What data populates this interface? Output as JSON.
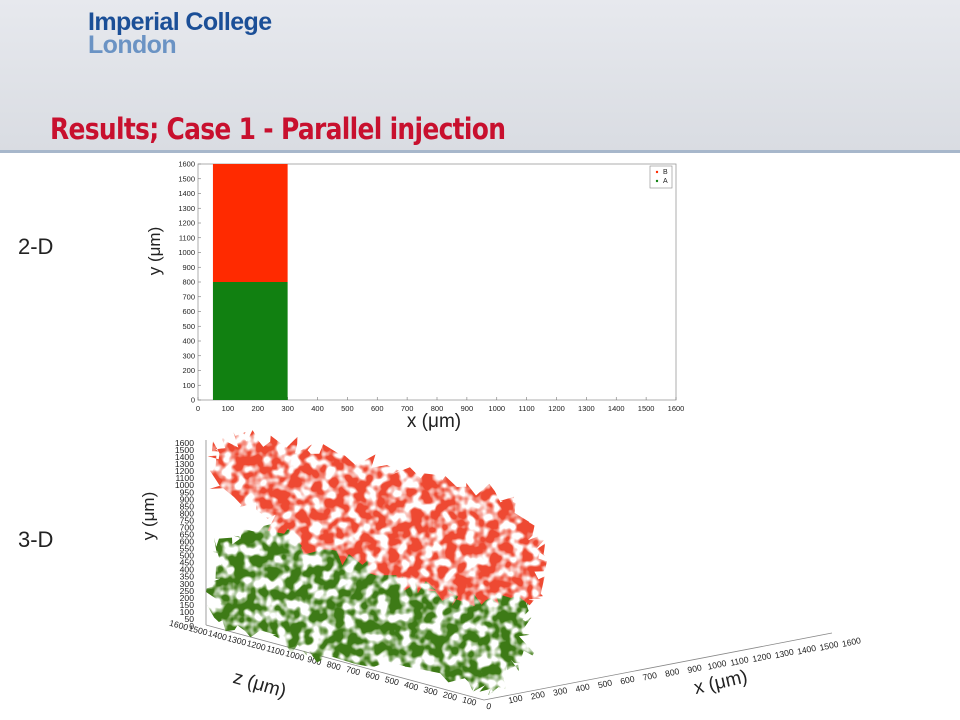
{
  "logo": {
    "line1": "Imperial College",
    "line2": "London"
  },
  "slide_title": "Results; Case 1 - Parallel injection",
  "side_labels": {
    "top": "2-D",
    "bottom": "3-D"
  },
  "colors": {
    "title": "#c8102e",
    "series_B": "#ff2a00",
    "series_A": "#118011",
    "series_B_3d": "#ee4a33",
    "series_A_3d": "#3d7a14"
  },
  "chart_data": [
    {
      "type": "scatter",
      "title": "",
      "xlabel": "x (μm)",
      "ylabel": "y (μm)",
      "xlim": [
        0,
        1600
      ],
      "ylim": [
        0,
        1600
      ],
      "xticks": [
        "0",
        "100",
        "200",
        "300",
        "400",
        "500",
        "600",
        "700",
        "800",
        "900",
        "1000",
        "1100",
        "1200",
        "1300",
        "1400",
        "1500",
        "1600"
      ],
      "yticks": [
        "0",
        "100",
        "200",
        "300",
        "400",
        "500",
        "600",
        "700",
        "800",
        "900",
        "1000",
        "1100",
        "1200",
        "1300",
        "1400",
        "1500",
        "1600"
      ],
      "legend": {
        "placement": "top-right",
        "entries": [
          "B",
          "A"
        ]
      },
      "series": [
        {
          "name": "B",
          "color": "#ff2a00",
          "region": {
            "x": [
              50,
              300
            ],
            "y": [
              800,
              1600
            ]
          }
        },
        {
          "name": "A",
          "color": "#118011",
          "region": {
            "x": [
              50,
              300
            ],
            "y": [
              0,
              800
            ]
          }
        }
      ],
      "grid": false
    },
    {
      "type": "scatter",
      "title": "",
      "xlabel": "x (μm)",
      "ylabel": "y (μm)",
      "zlabel": "z (μm)",
      "xlim": [
        0,
        1600
      ],
      "ylim": [
        0,
        1600
      ],
      "zlim": [
        0,
        1600
      ],
      "xticks": [
        "100",
        "200",
        "300",
        "400",
        "500",
        "600",
        "700",
        "800",
        "900",
        "1000",
        "1100",
        "1200",
        "1300",
        "1400",
        "1500",
        "1600"
      ],
      "yticks": [
        "0",
        "50",
        "100",
        "150",
        "200",
        "250",
        "300",
        "350",
        "400",
        "450",
        "500",
        "550",
        "600",
        "650",
        "700",
        "750",
        "800",
        "850",
        "900",
        "950",
        "1000",
        "1100",
        "1200",
        "1300",
        "1400",
        "1500",
        "1600"
      ],
      "zticks": [
        "0",
        "100",
        "200",
        "300",
        "400",
        "500",
        "600",
        "700",
        "800",
        "900",
        "1000",
        "1100",
        "1200",
        "1300",
        "1400",
        "1500",
        "1600"
      ],
      "series": [
        {
          "color": "#ee4a33",
          "region": {
            "y": [
              800,
              1600
            ]
          }
        },
        {
          "color": "#3d7a14",
          "region": {
            "y": [
              0,
              800
            ]
          }
        }
      ],
      "grid": false
    }
  ]
}
